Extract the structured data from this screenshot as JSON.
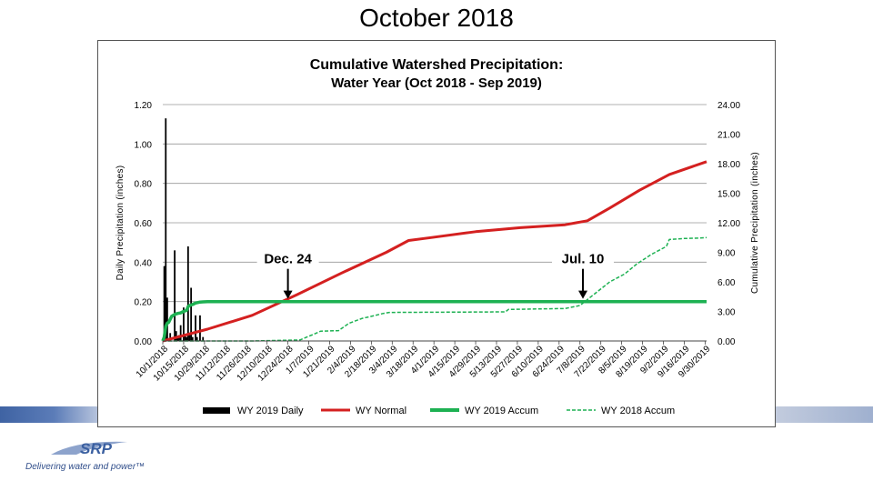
{
  "slide": {
    "title": "October 2018"
  },
  "footer": {
    "brand": "SRP",
    "tagline": "Delivering water and power™"
  },
  "colors": {
    "daily": "#000000",
    "normal": "#d42020",
    "accum2019": "#1db152",
    "accum2018": "#1db152",
    "grid": "#999999",
    "band": "#4a6aa8",
    "logo": "#3a5fa0"
  },
  "chart_data": {
    "type": "line",
    "title": "Cumulative Watershed Precipitation:",
    "subtitle": "Water Year (Oct 2018 - Sep 2019)",
    "ylabel": "Daily Precipitation (inches)",
    "y2label": "Cumulative Precipitation (inches)",
    "ylim": [
      0,
      1.2
    ],
    "y2lim": [
      0,
      24
    ],
    "xlim": [
      0,
      365
    ],
    "yticks": [
      "0.00",
      "0.20",
      "0.40",
      "0.60",
      "0.80",
      "1.00",
      "1.20"
    ],
    "y2ticks": [
      "0.00",
      "3.00",
      "6.00",
      "9.00",
      "12.00",
      "15.00",
      "18.00",
      "21.00",
      "24.00"
    ],
    "xticks": [
      "10/1/2018",
      "10/15/2018",
      "10/29/2018",
      "11/12/2018",
      "11/26/2018",
      "12/10/2018",
      "12/24/2018",
      "1/7/2019",
      "1/21/2019",
      "2/4/2019",
      "2/18/2019",
      "3/4/2019",
      "3/18/2019",
      "4/1/2019",
      "4/15/2019",
      "4/29/2019",
      "5/13/2019",
      "5/27/2019",
      "6/10/2019",
      "6/24/2019",
      "7/8/2019",
      "7/22/2019",
      "8/5/2019",
      "8/19/2019",
      "9/2/2019",
      "9/16/2019",
      "9/30/2019"
    ],
    "legend": [
      "WY 2019 Daily",
      "WY Normal",
      "WY 2019 Accum",
      "WY 2018 Accum"
    ],
    "legend_position": "bottom",
    "annotations": [
      {
        "label": "Dec. 24",
        "day": 84,
        "cum_value": 4.0
      },
      {
        "label": "Jul. 10",
        "day": 282,
        "cum_value": 4.0
      }
    ],
    "series": [
      {
        "name": "WY 2019 Daily",
        "type": "bar",
        "axis": "left",
        "x": [
          1,
          2,
          3,
          5,
          8,
          9,
          10,
          11,
          12,
          14,
          15,
          16,
          17,
          18,
          19,
          20,
          22,
          23,
          25,
          27
        ],
        "y": [
          0.38,
          1.13,
          0.22,
          0.04,
          0.46,
          0.05,
          0.02,
          0.03,
          0.08,
          0.17,
          0.03,
          0.02,
          0.48,
          0.04,
          0.27,
          0.02,
          0.13,
          0.02,
          0.13,
          0.02
        ]
      },
      {
        "name": "WY Normal",
        "type": "line",
        "axis": "right",
        "x": [
          0,
          30,
          60,
          90,
          120,
          150,
          165,
          180,
          210,
          240,
          270,
          285,
          300,
          320,
          340,
          365
        ],
        "y": [
          0,
          1.2,
          2.6,
          4.7,
          6.9,
          9.0,
          10.2,
          10.5,
          11.1,
          11.5,
          11.8,
          12.2,
          13.5,
          15.3,
          16.9,
          18.2
        ]
      },
      {
        "name": "WY 2019 Accum",
        "type": "line",
        "axis": "right",
        "x": [
          0,
          1,
          2,
          3,
          4,
          6,
          8,
          10,
          12,
          14,
          16,
          17,
          18,
          20,
          22,
          25,
          27,
          30,
          365
        ],
        "y": [
          0,
          0.4,
          1.5,
          1.8,
          1.9,
          2.5,
          2.7,
          2.8,
          2.85,
          3.0,
          3.1,
          3.5,
          3.6,
          3.7,
          3.85,
          3.95,
          3.97,
          4.0,
          4.0
        ]
      },
      {
        "name": "WY 2018 Accum",
        "type": "line",
        "axis": "right",
        "x": [
          0,
          60,
          92,
          100,
          106,
          118,
          125,
          134,
          140,
          148,
          152,
          230,
          232,
          270,
          280,
          290,
          300,
          310,
          318,
          328,
          338,
          340,
          350,
          360,
          365
        ],
        "y": [
          0,
          0,
          0.1,
          0.6,
          1.0,
          1.05,
          1.8,
          2.3,
          2.5,
          2.8,
          2.9,
          2.95,
          3.2,
          3.3,
          3.6,
          4.8,
          6.0,
          6.8,
          7.8,
          8.8,
          9.6,
          10.3,
          10.4,
          10.45,
          10.5
        ]
      }
    ]
  }
}
